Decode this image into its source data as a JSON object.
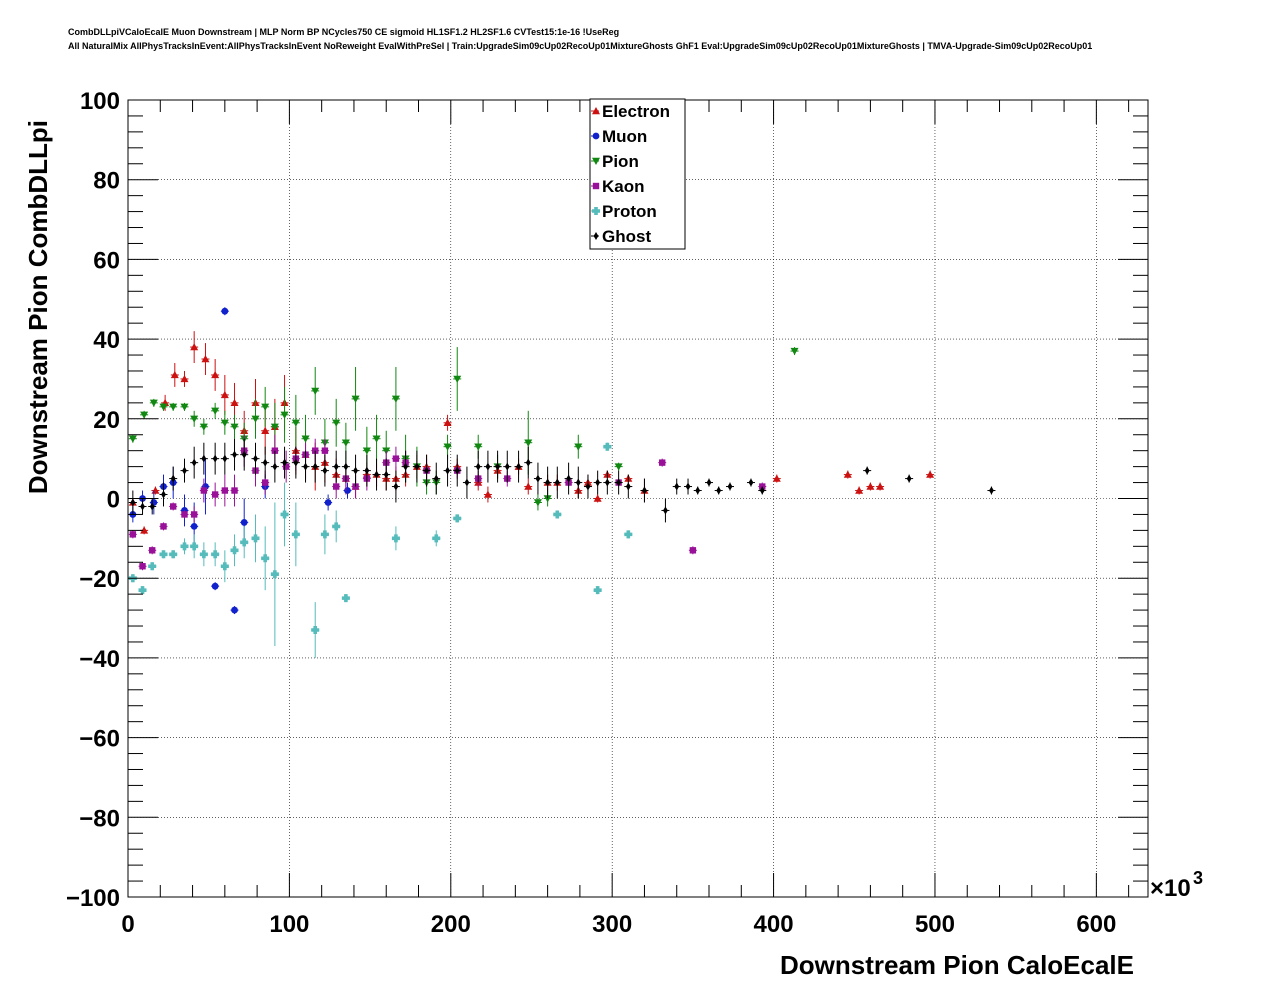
{
  "header": {
    "title_line1": "CombDLLpiVCaloEcalE Muon Downstream | MLP Norm BP NCycles750 CE sigmoid HL1SF1.2 HL2SF1.6 CVTest15:1e-16 !UseReg",
    "title_line2": "All NaturalMix AllPhysTracksInEvent:AllPhysTracksInEvent NoReweight EvalWithPreSel | Train:UpgradeSim09cUp02RecoUp01MixtureGhosts GhF1 Eval:UpgradeSim09cUp02RecoUp01MixtureGhosts | TMVA-Upgrade-Sim09cUp02RecoUp01"
  },
  "chart_data": {
    "type": "scatter",
    "xlabel": "Downstream Pion CaloEcalE",
    "ylabel": "Downstream Pion CombDLLpi",
    "x_multiplier_label": "×10",
    "x_multiplier_exp": "3",
    "xlim": [
      0,
      632
    ],
    "ylim": [
      -100,
      100
    ],
    "x_ticks": [
      0,
      100,
      200,
      300,
      400,
      500,
      600
    ],
    "y_ticks": [
      -100,
      -80,
      -60,
      -40,
      -20,
      0,
      20,
      40,
      60,
      80,
      100
    ],
    "x_tick_labels": [
      "0",
      "100",
      "200",
      "300",
      "400",
      "500",
      "600"
    ],
    "y_tick_labels": [
      "−100",
      "−80",
      "−60",
      "−40",
      "−20",
      "0",
      "20",
      "40",
      "60",
      "80",
      "100"
    ],
    "grid": true,
    "legend_position": "top-center",
    "series": [
      {
        "name": "Electron",
        "color": "#cc1111",
        "marker": "triangle-up",
        "points": [
          [
            3,
            -1,
            1
          ],
          [
            10,
            -8,
            1
          ],
          [
            17,
            2,
            1
          ],
          [
            23,
            24,
            2
          ],
          [
            29,
            31,
            3
          ],
          [
            35,
            30,
            2
          ],
          [
            41,
            38,
            4
          ],
          [
            48,
            35,
            4
          ],
          [
            54,
            31,
            4
          ],
          [
            60,
            26,
            5
          ],
          [
            66,
            24,
            5
          ],
          [
            72,
            17,
            5
          ],
          [
            79,
            24,
            6
          ],
          [
            85,
            17,
            6
          ],
          [
            91,
            18,
            7
          ],
          [
            97,
            24,
            7
          ],
          [
            104,
            12,
            6
          ],
          [
            110,
            11,
            6
          ],
          [
            116,
            8,
            6
          ],
          [
            122,
            9,
            5
          ],
          [
            129,
            6,
            4
          ],
          [
            135,
            5,
            4
          ],
          [
            141,
            3,
            3
          ],
          [
            148,
            6,
            3
          ],
          [
            154,
            6,
            3
          ],
          [
            160,
            5,
            3
          ],
          [
            166,
            5,
            3
          ],
          [
            172,
            6,
            3
          ],
          [
            179,
            8,
            3
          ],
          [
            185,
            8,
            3
          ],
          [
            198,
            19,
            2
          ],
          [
            204,
            8,
            2
          ],
          [
            217,
            4,
            2
          ],
          [
            223,
            1,
            2
          ],
          [
            229,
            7,
            2
          ],
          [
            242,
            8,
            2
          ],
          [
            248,
            3,
            2
          ],
          [
            260,
            4,
            2
          ],
          [
            266,
            4,
            2
          ],
          [
            279,
            2,
            2
          ],
          [
            285,
            4,
            2
          ],
          [
            291,
            0,
            1
          ],
          [
            297,
            6,
            1
          ],
          [
            310,
            5,
            1
          ],
          [
            320,
            2,
            3
          ],
          [
            402,
            5,
            1
          ],
          [
            446,
            6,
            1
          ],
          [
            453,
            2,
            1
          ],
          [
            460,
            3,
            1
          ],
          [
            466,
            3,
            1
          ],
          [
            497,
            6,
            1
          ]
        ]
      },
      {
        "name": "Muon",
        "color": "#1122cc",
        "marker": "circle",
        "points": [
          [
            3,
            -4,
            2
          ],
          [
            9,
            0,
            2
          ],
          [
            16,
            -1,
            3
          ],
          [
            22,
            3,
            3
          ],
          [
            28,
            4,
            4
          ],
          [
            35,
            -3,
            4
          ],
          [
            41,
            -7,
            6
          ],
          [
            48,
            3,
            7
          ],
          [
            54,
            -22,
            1
          ],
          [
            60,
            47,
            1
          ],
          [
            66,
            -28,
            1
          ],
          [
            72,
            -6,
            6
          ],
          [
            85,
            3,
            3
          ],
          [
            124,
            -1,
            2
          ],
          [
            136,
            2,
            2
          ]
        ]
      },
      {
        "name": "Pion",
        "color": "#118811",
        "marker": "triangle-down",
        "points": [
          [
            3,
            15,
            1
          ],
          [
            10,
            21,
            1
          ],
          [
            16,
            24,
            1
          ],
          [
            22,
            23,
            1
          ],
          [
            28,
            23,
            1
          ],
          [
            35,
            23,
            1
          ],
          [
            41,
            20,
            2
          ],
          [
            47,
            18,
            2
          ],
          [
            54,
            22,
            2
          ],
          [
            60,
            19,
            3
          ],
          [
            66,
            18,
            3
          ],
          [
            72,
            15,
            4
          ],
          [
            79,
            20,
            5
          ],
          [
            85,
            23,
            5
          ],
          [
            91,
            18,
            6
          ],
          [
            97,
            21,
            7
          ],
          [
            104,
            19,
            7
          ],
          [
            110,
            15,
            6
          ],
          [
            116,
            27,
            6
          ],
          [
            122,
            14,
            6
          ],
          [
            129,
            19,
            6
          ],
          [
            135,
            14,
            5
          ],
          [
            141,
            25,
            8
          ],
          [
            148,
            12,
            6
          ],
          [
            154,
            15,
            6
          ],
          [
            160,
            12,
            5
          ],
          [
            166,
            25,
            8
          ],
          [
            172,
            10,
            6
          ],
          [
            179,
            8,
            5
          ],
          [
            185,
            4,
            3
          ],
          [
            191,
            4,
            3
          ],
          [
            198,
            13,
            3
          ],
          [
            204,
            30,
            8
          ],
          [
            217,
            13,
            3
          ],
          [
            229,
            8,
            3
          ],
          [
            248,
            14,
            8
          ],
          [
            254,
            -1,
            2
          ],
          [
            260,
            0,
            2
          ],
          [
            279,
            13,
            3
          ],
          [
            304,
            8,
            1
          ],
          [
            413,
            37,
            1
          ]
        ]
      },
      {
        "name": "Kaon",
        "color": "#991199",
        "marker": "square",
        "points": [
          [
            3,
            -9,
            1
          ],
          [
            9,
            -17,
            1
          ],
          [
            15,
            -13,
            1
          ],
          [
            22,
            -7,
            1
          ],
          [
            28,
            -2,
            1
          ],
          [
            35,
            -4,
            1
          ],
          [
            41,
            -4,
            2
          ],
          [
            47,
            2,
            3
          ],
          [
            54,
            1,
            3
          ],
          [
            60,
            2,
            4
          ],
          [
            66,
            2,
            4
          ],
          [
            72,
            12,
            4
          ],
          [
            79,
            7,
            4
          ],
          [
            85,
            4,
            3
          ],
          [
            91,
            12,
            4
          ],
          [
            98,
            8,
            4
          ],
          [
            104,
            10,
            3
          ],
          [
            110,
            11,
            3
          ],
          [
            116,
            12,
            3
          ],
          [
            122,
            12,
            3
          ],
          [
            129,
            3,
            3
          ],
          [
            135,
            5,
            3
          ],
          [
            141,
            3,
            3
          ],
          [
            148,
            5,
            3
          ],
          [
            160,
            9,
            3
          ],
          [
            166,
            10,
            3
          ],
          [
            172,
            9,
            3
          ],
          [
            185,
            7,
            3
          ],
          [
            204,
            7,
            2
          ],
          [
            217,
            5,
            2
          ],
          [
            235,
            5,
            2
          ],
          [
            273,
            4,
            1
          ],
          [
            304,
            4,
            1
          ],
          [
            331,
            9,
            1
          ],
          [
            350,
            -13,
            1
          ],
          [
            393,
            3,
            1
          ]
        ]
      },
      {
        "name": "Proton",
        "color": "#55bbbb",
        "marker": "cross",
        "points": [
          [
            3,
            -20,
            1
          ],
          [
            9,
            -23,
            1
          ],
          [
            15,
            -17,
            1
          ],
          [
            22,
            -14,
            1
          ],
          [
            28,
            -14,
            1
          ],
          [
            35,
            -12,
            2
          ],
          [
            41,
            -12,
            3
          ],
          [
            47,
            -14,
            3
          ],
          [
            54,
            -14,
            3
          ],
          [
            60,
            -17,
            4
          ],
          [
            66,
            -13,
            4
          ],
          [
            72,
            -11,
            4
          ],
          [
            79,
            -10,
            6
          ],
          [
            85,
            -15,
            8
          ],
          [
            91,
            -19,
            18
          ],
          [
            97,
            -4,
            8
          ],
          [
            104,
            -9,
            8
          ],
          [
            116,
            -33,
            7
          ],
          [
            122,
            -9,
            5
          ],
          [
            129,
            -7,
            4
          ],
          [
            135,
            -25,
            1
          ],
          [
            166,
            -10,
            3
          ],
          [
            191,
            -10,
            2
          ],
          [
            204,
            -5,
            1
          ],
          [
            266,
            -4,
            1
          ],
          [
            291,
            -23,
            1
          ],
          [
            297,
            13,
            1
          ],
          [
            310,
            -9,
            1
          ]
        ]
      },
      {
        "name": "Ghost",
        "color": "#000000",
        "marker": "diamond",
        "points": [
          [
            3,
            -1,
            3
          ],
          [
            9,
            -2,
            2
          ],
          [
            15,
            -2,
            2
          ],
          [
            22,
            1,
            3
          ],
          [
            28,
            5,
            3
          ],
          [
            35,
            7,
            3
          ],
          [
            41,
            9,
            4
          ],
          [
            47,
            10,
            4
          ],
          [
            54,
            10,
            4
          ],
          [
            60,
            10,
            4
          ],
          [
            66,
            11,
            4
          ],
          [
            72,
            11,
            4
          ],
          [
            79,
            10,
            4
          ],
          [
            85,
            9,
            4
          ],
          [
            91,
            8,
            4
          ],
          [
            97,
            9,
            4
          ],
          [
            104,
            9,
            4
          ],
          [
            110,
            8,
            4
          ],
          [
            116,
            8,
            4
          ],
          [
            122,
            7,
            4
          ],
          [
            129,
            8,
            4
          ],
          [
            135,
            8,
            4
          ],
          [
            141,
            7,
            4
          ],
          [
            148,
            7,
            4
          ],
          [
            154,
            6,
            4
          ],
          [
            160,
            6,
            4
          ],
          [
            166,
            3,
            4
          ],
          [
            172,
            8,
            4
          ],
          [
            179,
            8,
            4
          ],
          [
            185,
            7,
            4
          ],
          [
            191,
            5,
            4
          ],
          [
            198,
            7,
            4
          ],
          [
            204,
            7,
            4
          ],
          [
            210,
            4,
            4
          ],
          [
            217,
            8,
            4
          ],
          [
            223,
            8,
            4
          ],
          [
            229,
            8,
            4
          ],
          [
            235,
            8,
            4
          ],
          [
            242,
            8,
            4
          ],
          [
            248,
            9,
            4
          ],
          [
            254,
            5,
            4
          ],
          [
            260,
            4,
            4
          ],
          [
            266,
            4,
            4
          ],
          [
            273,
            5,
            4
          ],
          [
            279,
            4,
            4
          ],
          [
            285,
            3,
            3
          ],
          [
            291,
            4,
            3
          ],
          [
            297,
            4,
            3
          ],
          [
            304,
            4,
            3
          ],
          [
            310,
            3,
            3
          ],
          [
            320,
            2,
            3
          ],
          [
            333,
            -3,
            3
          ],
          [
            340,
            3,
            2
          ],
          [
            347,
            3,
            2
          ],
          [
            353,
            2,
            1
          ],
          [
            360,
            4,
            1
          ],
          [
            366,
            2,
            1
          ],
          [
            373,
            3,
            1
          ],
          [
            386,
            4,
            1
          ],
          [
            393,
            2,
            1
          ],
          [
            458,
            7,
            1
          ],
          [
            484,
            5,
            1
          ],
          [
            535,
            2,
            1
          ]
        ]
      }
    ]
  }
}
